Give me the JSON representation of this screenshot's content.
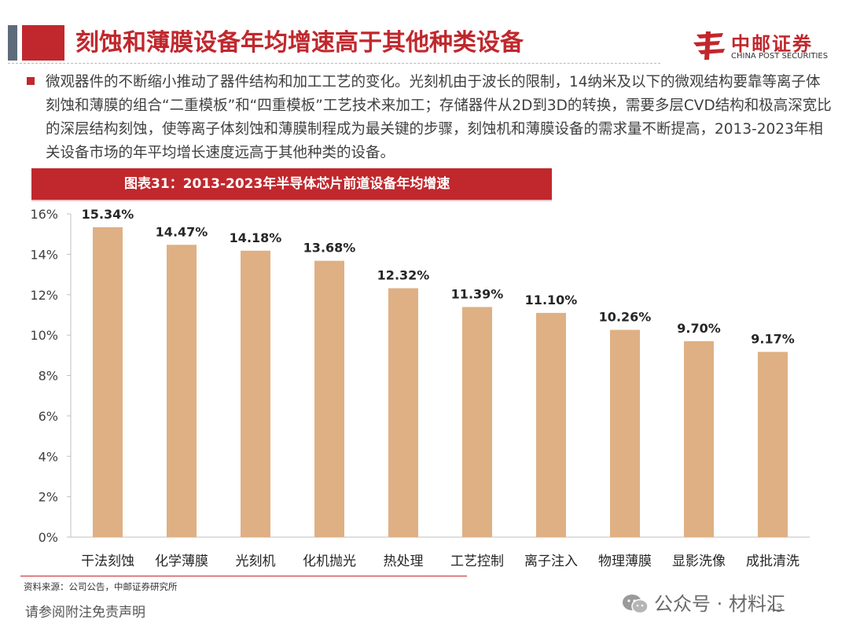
{
  "header": {
    "title": "刻蚀和薄膜设备年均增速高于其他种类设备",
    "logo_cn": "中邮证券",
    "logo_en": "CHINA POST SECURITIES"
  },
  "intro_text": "微观器件的不断缩小推动了器件结构和加工工艺的变化。光刻机由于波长的限制，14纳米及以下的微观结构要靠等离子体刻蚀和薄膜的组合“二重模板”和“四重模板”工艺技术来加工；存储器件从2D到3D的转换，需要多层CVD结构和极高深宽比的深层结构刻蚀，使等离子体刻蚀和薄膜制程成为最关键的步骤，刻蚀机和薄膜设备的需求量不断提高，2013-2023年相关设备市场的年平均增长速度远高于其他种类的设备。",
  "chart_data": {
    "type": "bar",
    "title": "图表31：2013-2023年半导体芯片前道设备年均增速",
    "categories": [
      "干法刻蚀",
      "化学薄膜",
      "光刻机",
      "化机抛光",
      "热处理",
      "工艺控制",
      "离子注入",
      "物理薄膜",
      "显影洗像",
      "成批清洗"
    ],
    "values": [
      15.34,
      14.47,
      14.18,
      13.68,
      12.32,
      11.39,
      11.1,
      10.26,
      9.7,
      9.17
    ],
    "value_labels": [
      "15.34%",
      "14.47%",
      "14.18%",
      "13.68%",
      "12.32%",
      "11.39%",
      "11.10%",
      "10.26%",
      "9.70%",
      "9.17%"
    ],
    "y_ticks": [
      "0%",
      "2%",
      "4%",
      "6%",
      "8%",
      "10%",
      "12%",
      "14%",
      "16%"
    ],
    "ylim": [
      0,
      16
    ],
    "xlabel": "",
    "ylabel": "",
    "grid": false,
    "bar_color": "#deb084"
  },
  "footer": {
    "source": "资料来源：公司公告，中邮证券研究所",
    "disclaimer": "请参阅附注免责声明",
    "wechat": "公众号 · 材料汇",
    "page": "43"
  },
  "colors": {
    "brand_red": "#c0282d",
    "bar": "#deb084"
  }
}
